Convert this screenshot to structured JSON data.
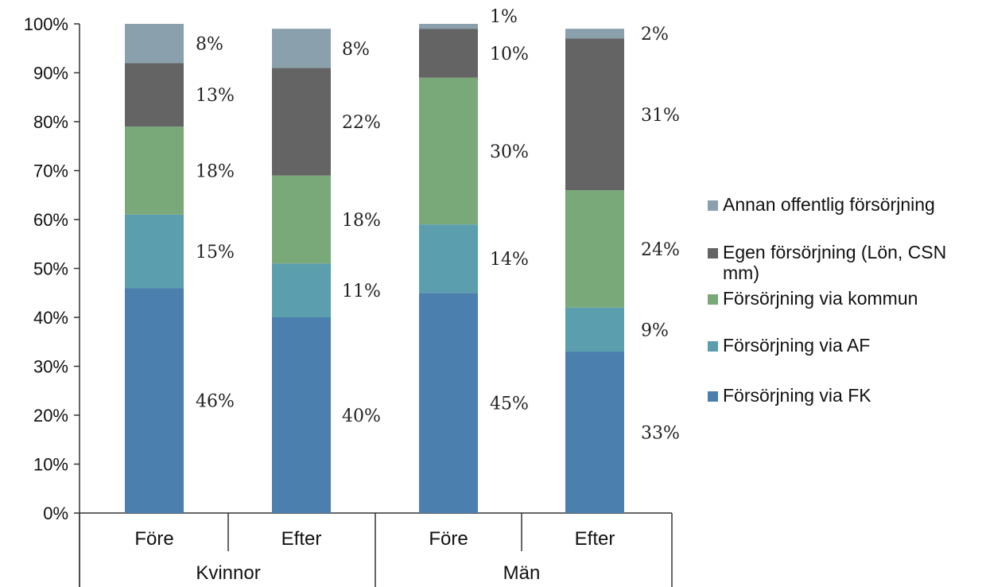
{
  "chart_data": {
    "type": "bar",
    "stacked": true,
    "groups": [
      "Kvinnor",
      "Män"
    ],
    "categories": [
      "Före",
      "Efter",
      "Före",
      "Efter"
    ],
    "category_group": [
      0,
      0,
      1,
      1
    ],
    "y_tick_labels": [
      "0%",
      "10%",
      "20%",
      "30%",
      "40%",
      "50%",
      "60%",
      "70%",
      "80%",
      "90%",
      "100%"
    ],
    "ylim": [
      0,
      100
    ],
    "grid": false,
    "legend_position": "right",
    "series": [
      {
        "name": "Försörjning via FK",
        "color": "#4a7fae",
        "values": [
          46,
          40,
          45,
          33
        ],
        "labels": [
          "46%",
          "40%",
          "45%",
          "33%"
        ]
      },
      {
        "name": "Försörjning via AF",
        "color": "#5b9fae",
        "values": [
          15,
          11,
          14,
          9
        ],
        "labels": [
          "15%",
          "11%",
          "14%",
          "9%"
        ]
      },
      {
        "name": "Försörjning via kommun",
        "color": "#79a879",
        "values": [
          18,
          18,
          30,
          24
        ],
        "labels": [
          "18%",
          "18%",
          "30%",
          "24%"
        ]
      },
      {
        "name": "Egen försörjning (Lön, CSN mm)",
        "color": "#646464",
        "values": [
          13,
          22,
          10,
          31
        ],
        "labels": [
          "13%",
          "22%",
          "10%",
          "31%"
        ]
      },
      {
        "name": "Annan offentlig försörjning",
        "color": "#8aa0ac",
        "values": [
          8,
          8,
          1,
          2
        ],
        "labels": [
          "8%",
          "8%",
          "1%",
          "2%"
        ]
      }
    ],
    "legend_order": [
      4,
      3,
      2,
      1,
      0
    ]
  }
}
